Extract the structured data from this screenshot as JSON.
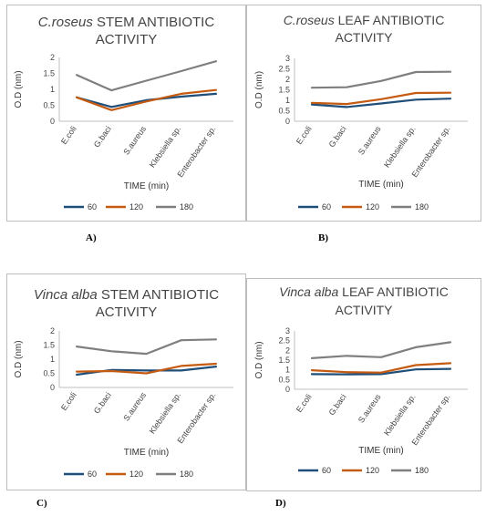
{
  "panel_labels": [
    "A)",
    "B)",
    "C)",
    "D)"
  ],
  "chart_data": [
    {
      "type": "line",
      "title_species": "C.roseus",
      "title_rest_line1": " STEM ANTIBIOTIC",
      "title_line2": "ACTIVITY",
      "xlabel": "TIME (min)",
      "ylabel": "O.D (nm)",
      "categories": [
        "E.coli",
        "G.baci",
        "S.aureus",
        "Klebsiella sp.",
        "Enterobacter sp."
      ],
      "ylim": [
        0,
        2
      ],
      "yticks": [
        0,
        0.5,
        1,
        1.5,
        2
      ],
      "ytick_labels": [
        "0",
        "0.5",
        "1",
        "1.5",
        "2"
      ],
      "grid": false,
      "legend": "bottom",
      "series": [
        {
          "name": "60",
          "color": "#1f4e79",
          "values": [
            0.75,
            0.45,
            0.66,
            0.77,
            0.86
          ]
        },
        {
          "name": "120",
          "color": "#c55a11",
          "values": [
            0.75,
            0.35,
            0.62,
            0.86,
            0.98
          ]
        },
        {
          "name": "180",
          "color": "#7f7f7f",
          "values": [
            1.45,
            0.97,
            1.27,
            1.57,
            1.88
          ]
        }
      ]
    },
    {
      "type": "line",
      "title_species": "C.roseus",
      "title_rest_line1": " LEAF ANTIBIOTIC",
      "title_line2": "ACTIVITY",
      "xlabel": "TIME (min)",
      "ylabel": "O.D (nm)",
      "categories": [
        "E.coli",
        "G.baci",
        "S.aureus",
        "Klebsiella sp.",
        "Enterobacter sp."
      ],
      "ylim": [
        0,
        3
      ],
      "yticks": [
        0,
        0.5,
        1,
        1.5,
        2,
        2.5,
        3
      ],
      "ytick_labels": [
        "0",
        "0.5",
        "1",
        "1.5",
        "2",
        "2.5",
        "3"
      ],
      "grid": false,
      "legend": "bottom",
      "series": [
        {
          "name": "60",
          "color": "#1f4e79",
          "values": [
            0.8,
            0.68,
            0.85,
            1.03,
            1.08
          ]
        },
        {
          "name": "120",
          "color": "#c55a11",
          "values": [
            0.88,
            0.82,
            1.05,
            1.35,
            1.36
          ]
        },
        {
          "name": "180",
          "color": "#7f7f7f",
          "values": [
            1.6,
            1.62,
            1.92,
            2.35,
            2.36
          ]
        }
      ]
    },
    {
      "type": "line",
      "title_species": "Vinca alba",
      "title_rest_line1": " STEM ANTIBIOTIC",
      "title_line2": "ACTIVITY",
      "xlabel": "TIME (min)",
      "ylabel": "O.D (nm)",
      "categories": [
        "E.coli",
        "G.baci",
        "S.aureus",
        "Klebsiella sp.",
        "Enterobacter sp."
      ],
      "ylim": [
        0,
        2
      ],
      "yticks": [
        0,
        0.5,
        1,
        1.5,
        2
      ],
      "ytick_labels": [
        "0",
        "0.5",
        "1",
        "1.5",
        "2"
      ],
      "grid": false,
      "legend": "bottom",
      "series": [
        {
          "name": "60",
          "color": "#1f4e79",
          "values": [
            0.45,
            0.62,
            0.6,
            0.6,
            0.74
          ]
        },
        {
          "name": "120",
          "color": "#c55a11",
          "values": [
            0.56,
            0.58,
            0.5,
            0.76,
            0.84
          ]
        },
        {
          "name": "180",
          "color": "#7f7f7f",
          "values": [
            1.45,
            1.28,
            1.19,
            1.67,
            1.7
          ]
        }
      ]
    },
    {
      "type": "line",
      "title_species": "Vinca alba",
      "title_rest_line1": " LEAF ANTIBIOTIC",
      "title_line2": "ACTIVITY",
      "xlabel": "TIME (min)",
      "ylabel": "O.D (nm)",
      "categories": [
        "E.coli",
        "G.baci",
        "S.aureus",
        "Klebsiella sp.",
        "Enterobacter sp."
      ],
      "ylim": [
        0,
        3
      ],
      "yticks": [
        0,
        0.5,
        1,
        1.5,
        2,
        2.5,
        3
      ],
      "ytick_labels": [
        "0",
        "0.5",
        "1",
        "1.5",
        "2",
        "2.5",
        "3"
      ],
      "grid": false,
      "legend": "bottom",
      "series": [
        {
          "name": "60",
          "color": "#1f4e79",
          "values": [
            0.78,
            0.77,
            0.78,
            1.02,
            1.05
          ]
        },
        {
          "name": "120",
          "color": "#c55a11",
          "values": [
            0.98,
            0.88,
            0.86,
            1.24,
            1.34
          ]
        },
        {
          "name": "180",
          "color": "#7f7f7f",
          "values": [
            1.6,
            1.72,
            1.65,
            2.16,
            2.42
          ]
        }
      ]
    }
  ]
}
